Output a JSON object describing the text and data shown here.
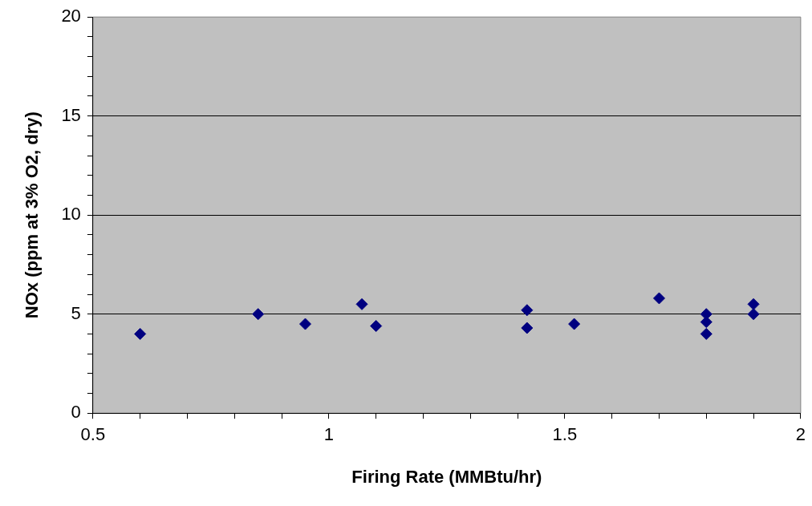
{
  "chart_data": {
    "type": "scatter",
    "xlabel": "Firing Rate (MMBtu/hr)",
    "ylabel": "NOx (ppm at 3% O2, dry)",
    "x": [
      0.6,
      0.85,
      0.95,
      1.07,
      1.1,
      1.42,
      1.42,
      1.52,
      1.7,
      1.8,
      1.8,
      1.8,
      1.9,
      1.9
    ],
    "values": [
      4.0,
      5.0,
      4.5,
      5.5,
      4.4,
      5.2,
      4.3,
      4.5,
      5.8,
      5.0,
      4.6,
      4.0,
      5.5,
      5.0
    ],
    "color": "#000080",
    "marker": "diamond",
    "grid": "y",
    "legend": false,
    "xlim": [
      0.5,
      2
    ],
    "ylim": [
      0,
      20
    ],
    "xticks": [
      0.5,
      {
        "value": 0.6,
        "label": null
      },
      {
        "value": 0.7,
        "label": null
      },
      {
        "value": 0.8,
        "label": null
      },
      {
        "value": 0.9,
        "label": null
      },
      1,
      {
        "value": 1.1,
        "label": null
      },
      {
        "value": 1.2,
        "label": null
      },
      {
        "value": 1.3,
        "label": null
      },
      {
        "value": 1.4,
        "label": null
      },
      1.5,
      {
        "value": 1.6,
        "label": null
      },
      {
        "value": 1.7,
        "label": null
      },
      {
        "value": 1.8,
        "label": null
      },
      {
        "value": 1.9,
        "label": null
      },
      2
    ],
    "yticks": [
      0,
      {
        "value": 1,
        "label": null
      },
      {
        "value": 2,
        "label": null
      },
      {
        "value": 3,
        "label": null
      },
      {
        "value": 4,
        "label": null
      },
      5,
      {
        "value": 6,
        "label": null
      },
      {
        "value": 7,
        "label": null
      },
      {
        "value": 8,
        "label": null
      },
      {
        "value": 9,
        "label": null
      },
      10,
      {
        "value": 11,
        "label": null
      },
      {
        "value": 12,
        "label": null
      },
      {
        "value": 13,
        "label": null
      },
      {
        "value": 14,
        "label": null
      },
      15,
      {
        "value": 16,
        "label": null
      },
      {
        "value": 17,
        "label": null
      },
      {
        "value": 18,
        "label": null
      },
      {
        "value": 19,
        "label": null
      },
      20
    ]
  }
}
